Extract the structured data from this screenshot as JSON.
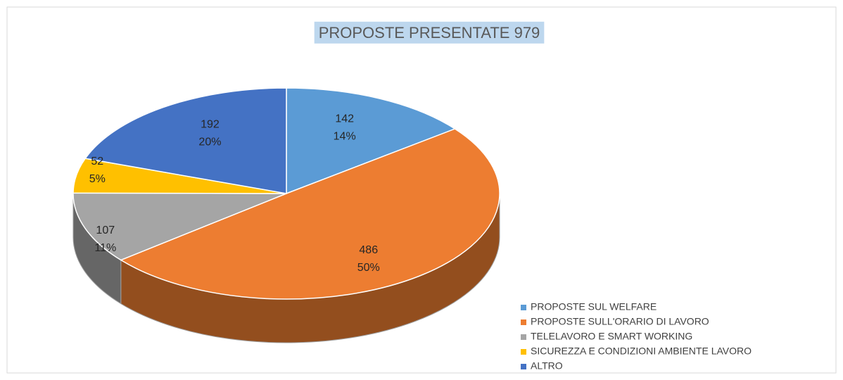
{
  "chart_data": {
    "type": "pie3d",
    "title": "PROPOSTE PRESENTATE 979",
    "categories": [
      "PROPOSTE SUL WELFARE",
      "PROPOSTE SULL'ORARIO DI LAVORO",
      "TELELAVORO E SMART WORKING",
      "SICUREZZA E CONDIZIONI AMBIENTE LAVORO",
      "ALTRO"
    ],
    "values": [
      142,
      486,
      107,
      52,
      192
    ],
    "percent_labels": [
      "14%",
      "50%",
      "11%",
      "5%",
      "20%"
    ],
    "colors": [
      "#5b9bd5",
      "#ed7d31",
      "#a5a5a5",
      "#ffc000",
      "#4472c4"
    ],
    "legend": "bottom-right"
  }
}
